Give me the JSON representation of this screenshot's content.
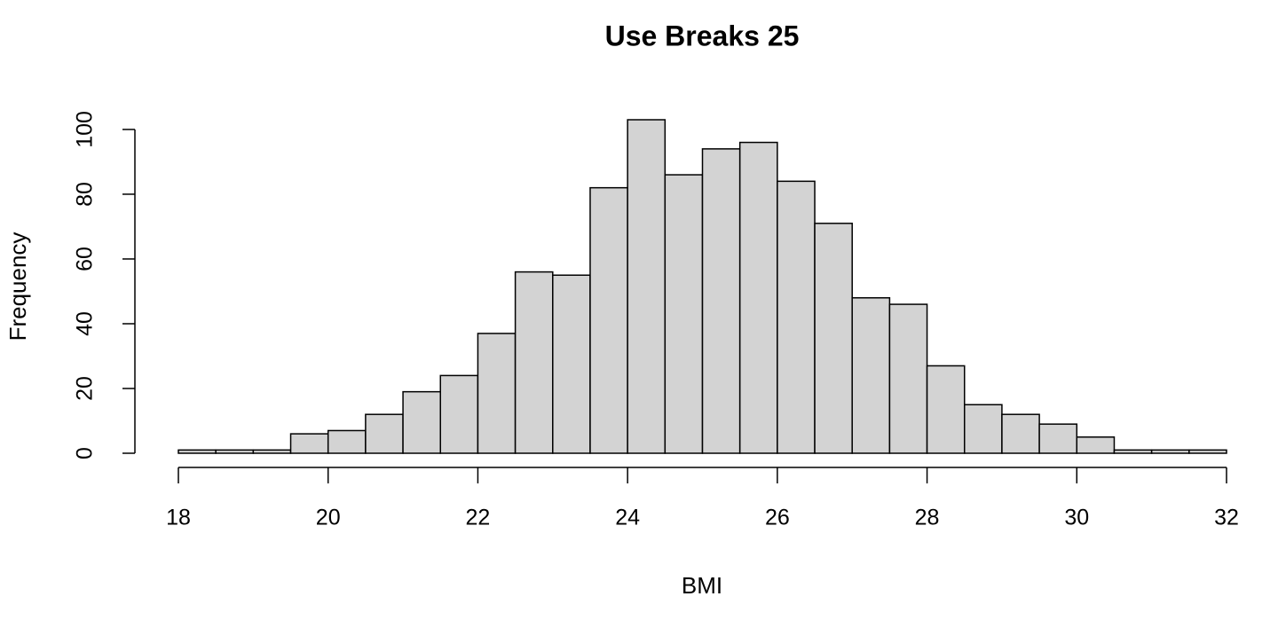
{
  "chart_data": {
    "type": "histogram",
    "title": "Use Breaks 25",
    "x_label": "BMI",
    "y_label": "Frequency",
    "bins": [
      18,
      18.5,
      19,
      19.5,
      20,
      20.5,
      21,
      21.5,
      22,
      22.5,
      23,
      23.5,
      24,
      24.5,
      25,
      25.5,
      26,
      26.5,
      27,
      27.5,
      28,
      28.5,
      29,
      29.5,
      30,
      30.5,
      31,
      31.5,
      32
    ],
    "counts": [
      1,
      1,
      1,
      6,
      7,
      12,
      19,
      24,
      37,
      56,
      55,
      82,
      103,
      86,
      94,
      96,
      84,
      71,
      48,
      46,
      27,
      15,
      12,
      9,
      5,
      1,
      1,
      1
    ],
    "color": "#d3d3d3",
    "xlim": [
      18,
      32
    ],
    "xticks": [
      18,
      20,
      22,
      24,
      26,
      28,
      30,
      32
    ],
    "ylim": [
      0,
      103
    ],
    "yticks": [
      0,
      20,
      40,
      60,
      80,
      100
    ]
  }
}
